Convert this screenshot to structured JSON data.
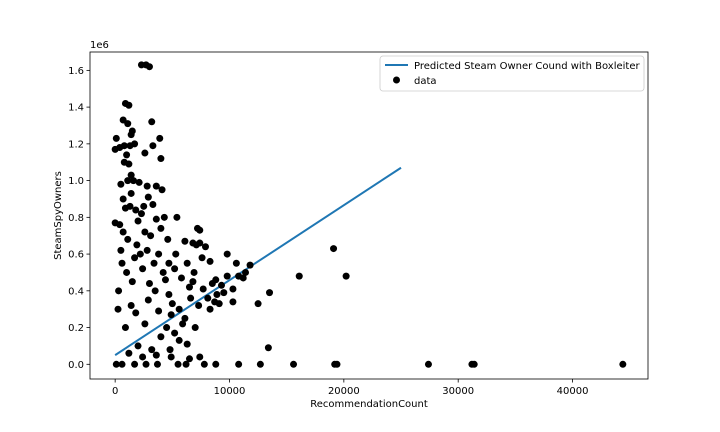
{
  "chart_data": {
    "type": "scatter",
    "title": "",
    "xlabel": "RecommendationCount",
    "ylabel": "SteamSpyOwners",
    "y_offset_label": "1e6",
    "xlim": [
      -2200,
      46600
    ],
    "ylim": [
      -0.08,
      1.7
    ],
    "x_ticks": [
      0,
      10000,
      20000,
      30000,
      40000
    ],
    "x_tick_labels": [
      "0",
      "10000",
      "20000",
      "30000",
      "40000"
    ],
    "y_ticks": [
      0.0,
      0.2,
      0.4,
      0.6,
      0.8,
      1.0,
      1.2,
      1.4,
      1.6
    ],
    "y_tick_labels": [
      "0.0",
      "0.2",
      "0.4",
      "0.6",
      "0.8",
      "1.0",
      "1.2",
      "1.4",
      "1.6"
    ],
    "grid": false,
    "legend_position": "top-right",
    "series": [
      {
        "name": "Predicted Steam Owner Cound with Boxleiter",
        "type": "line",
        "color": "#1f77b4",
        "x": [
          0,
          25000
        ],
        "y": [
          0.05,
          1.07
        ]
      },
      {
        "name": "data",
        "type": "scatter",
        "color": "#000000",
        "points": [
          [
            2300,
            1.63
          ],
          [
            2700,
            1.63
          ],
          [
            3000,
            1.62
          ],
          [
            900,
            1.42
          ],
          [
            1200,
            1.41
          ],
          [
            700,
            1.33
          ],
          [
            1100,
            1.31
          ],
          [
            1500,
            1.27
          ],
          [
            1400,
            1.25
          ],
          [
            3200,
            1.32
          ],
          [
            3900,
            1.23
          ],
          [
            100,
            1.23
          ],
          [
            0,
            1.17
          ],
          [
            400,
            1.18
          ],
          [
            800,
            1.19
          ],
          [
            1300,
            1.19
          ],
          [
            1700,
            1.2
          ],
          [
            2600,
            1.15
          ],
          [
            3300,
            1.19
          ],
          [
            4000,
            1.12
          ],
          [
            1000,
            1.14
          ],
          [
            1200,
            1.09
          ],
          [
            800,
            1.1
          ],
          [
            1400,
            1.03
          ],
          [
            1600,
            1.0
          ],
          [
            500,
            0.98
          ],
          [
            1100,
            1.0
          ],
          [
            2100,
            0.99
          ],
          [
            2800,
            0.97
          ],
          [
            3600,
            0.97
          ],
          [
            4100,
            0.95
          ],
          [
            1400,
            0.93
          ],
          [
            2900,
            0.91
          ],
          [
            700,
            0.9
          ],
          [
            3300,
            0.87
          ],
          [
            900,
            0.85
          ],
          [
            1800,
            0.84
          ],
          [
            2500,
            0.86
          ],
          [
            5400,
            0.8
          ],
          [
            4300,
            0.8
          ],
          [
            3600,
            0.79
          ],
          [
            0,
            0.77
          ],
          [
            400,
            0.76
          ],
          [
            7200,
            0.74
          ],
          [
            7400,
            0.73
          ],
          [
            4000,
            0.74
          ],
          [
            6100,
            0.67
          ],
          [
            6800,
            0.66
          ],
          [
            7100,
            0.65
          ],
          [
            7400,
            0.66
          ],
          [
            7900,
            0.64
          ],
          [
            7600,
            0.58
          ],
          [
            8300,
            0.56
          ],
          [
            9800,
            0.6
          ],
          [
            10600,
            0.55
          ],
          [
            11400,
            0.5
          ],
          [
            11800,
            0.54
          ],
          [
            19100,
            0.63
          ],
          [
            16100,
            0.48
          ],
          [
            20200,
            0.48
          ],
          [
            11200,
            0.47
          ],
          [
            10800,
            0.48
          ],
          [
            9800,
            0.48
          ],
          [
            8800,
            0.46
          ],
          [
            8500,
            0.44
          ],
          [
            9500,
            0.39
          ],
          [
            10300,
            0.41
          ],
          [
            13500,
            0.39
          ],
          [
            10300,
            0.34
          ],
          [
            12500,
            0.33
          ],
          [
            8700,
            0.34
          ],
          [
            8300,
            0.3
          ],
          [
            6500,
            0.42
          ],
          [
            5800,
            0.47
          ],
          [
            6900,
            0.5
          ],
          [
            6300,
            0.55
          ],
          [
            5200,
            0.52
          ],
          [
            4700,
            0.55
          ],
          [
            5600,
            0.3
          ],
          [
            6100,
            0.25
          ],
          [
            4900,
            0.27
          ],
          [
            4500,
            0.2
          ],
          [
            5600,
            0.13
          ],
          [
            6300,
            0.11
          ],
          [
            4800,
            0.08
          ],
          [
            7400,
            0.04
          ],
          [
            13400,
            0.09
          ],
          [
            7800,
            0.0
          ],
          [
            8800,
            0.0
          ],
          [
            10800,
            0.0
          ],
          [
            12700,
            0.0
          ],
          [
            15600,
            0.0
          ],
          [
            19200,
            0.0
          ],
          [
            19400,
            0.0
          ],
          [
            27400,
            0.0
          ],
          [
            31200,
            0.0
          ],
          [
            31400,
            0.0
          ],
          [
            44400,
            0.0
          ],
          [
            6200,
            0.0
          ],
          [
            5500,
            0.0
          ],
          [
            3700,
            0.0
          ],
          [
            2700,
            0.0
          ],
          [
            1700,
            0.0
          ],
          [
            600,
            0.0
          ],
          [
            100,
            0.0
          ],
          [
            2200,
            0.6
          ],
          [
            1900,
            0.65
          ],
          [
            3100,
            0.7
          ],
          [
            2600,
            0.72
          ],
          [
            1100,
            0.68
          ],
          [
            700,
            0.72
          ],
          [
            2400,
            0.52
          ],
          [
            3400,
            0.55
          ],
          [
            3800,
            0.6
          ],
          [
            4200,
            0.5
          ],
          [
            3000,
            0.44
          ],
          [
            1500,
            0.45
          ],
          [
            4700,
            0.38
          ],
          [
            5000,
            0.33
          ],
          [
            3800,
            0.29
          ],
          [
            2600,
            0.22
          ],
          [
            4000,
            0.15
          ],
          [
            3200,
            0.08
          ],
          [
            2000,
            0.1
          ],
          [
            900,
            0.2
          ],
          [
            1400,
            0.32
          ],
          [
            2900,
            0.35
          ],
          [
            300,
            0.4
          ],
          [
            1700,
            0.58
          ],
          [
            2000,
            0.78
          ],
          [
            2300,
            0.82
          ],
          [
            1300,
            0.86
          ],
          [
            500,
            0.62
          ],
          [
            4600,
            0.68
          ],
          [
            5300,
            0.6
          ],
          [
            6600,
            0.36
          ],
          [
            7300,
            0.32
          ],
          [
            8100,
            0.36
          ],
          [
            9100,
            0.33
          ],
          [
            7000,
            0.2
          ],
          [
            5900,
            0.22
          ],
          [
            5200,
            0.17
          ],
          [
            3500,
            0.4
          ],
          [
            4400,
            0.46
          ],
          [
            2800,
            0.62
          ],
          [
            6800,
            0.45
          ],
          [
            7700,
            0.41
          ],
          [
            9300,
            0.43
          ],
          [
            8900,
            0.38
          ],
          [
            1000,
            0.5
          ],
          [
            1800,
            0.28
          ],
          [
            600,
            0.55
          ],
          [
            250,
            0.3
          ],
          [
            3600,
            0.05
          ],
          [
            2400,
            0.04
          ],
          [
            1200,
            0.06
          ],
          [
            4900,
            0.04
          ],
          [
            6500,
            0.03
          ]
        ]
      }
    ]
  }
}
